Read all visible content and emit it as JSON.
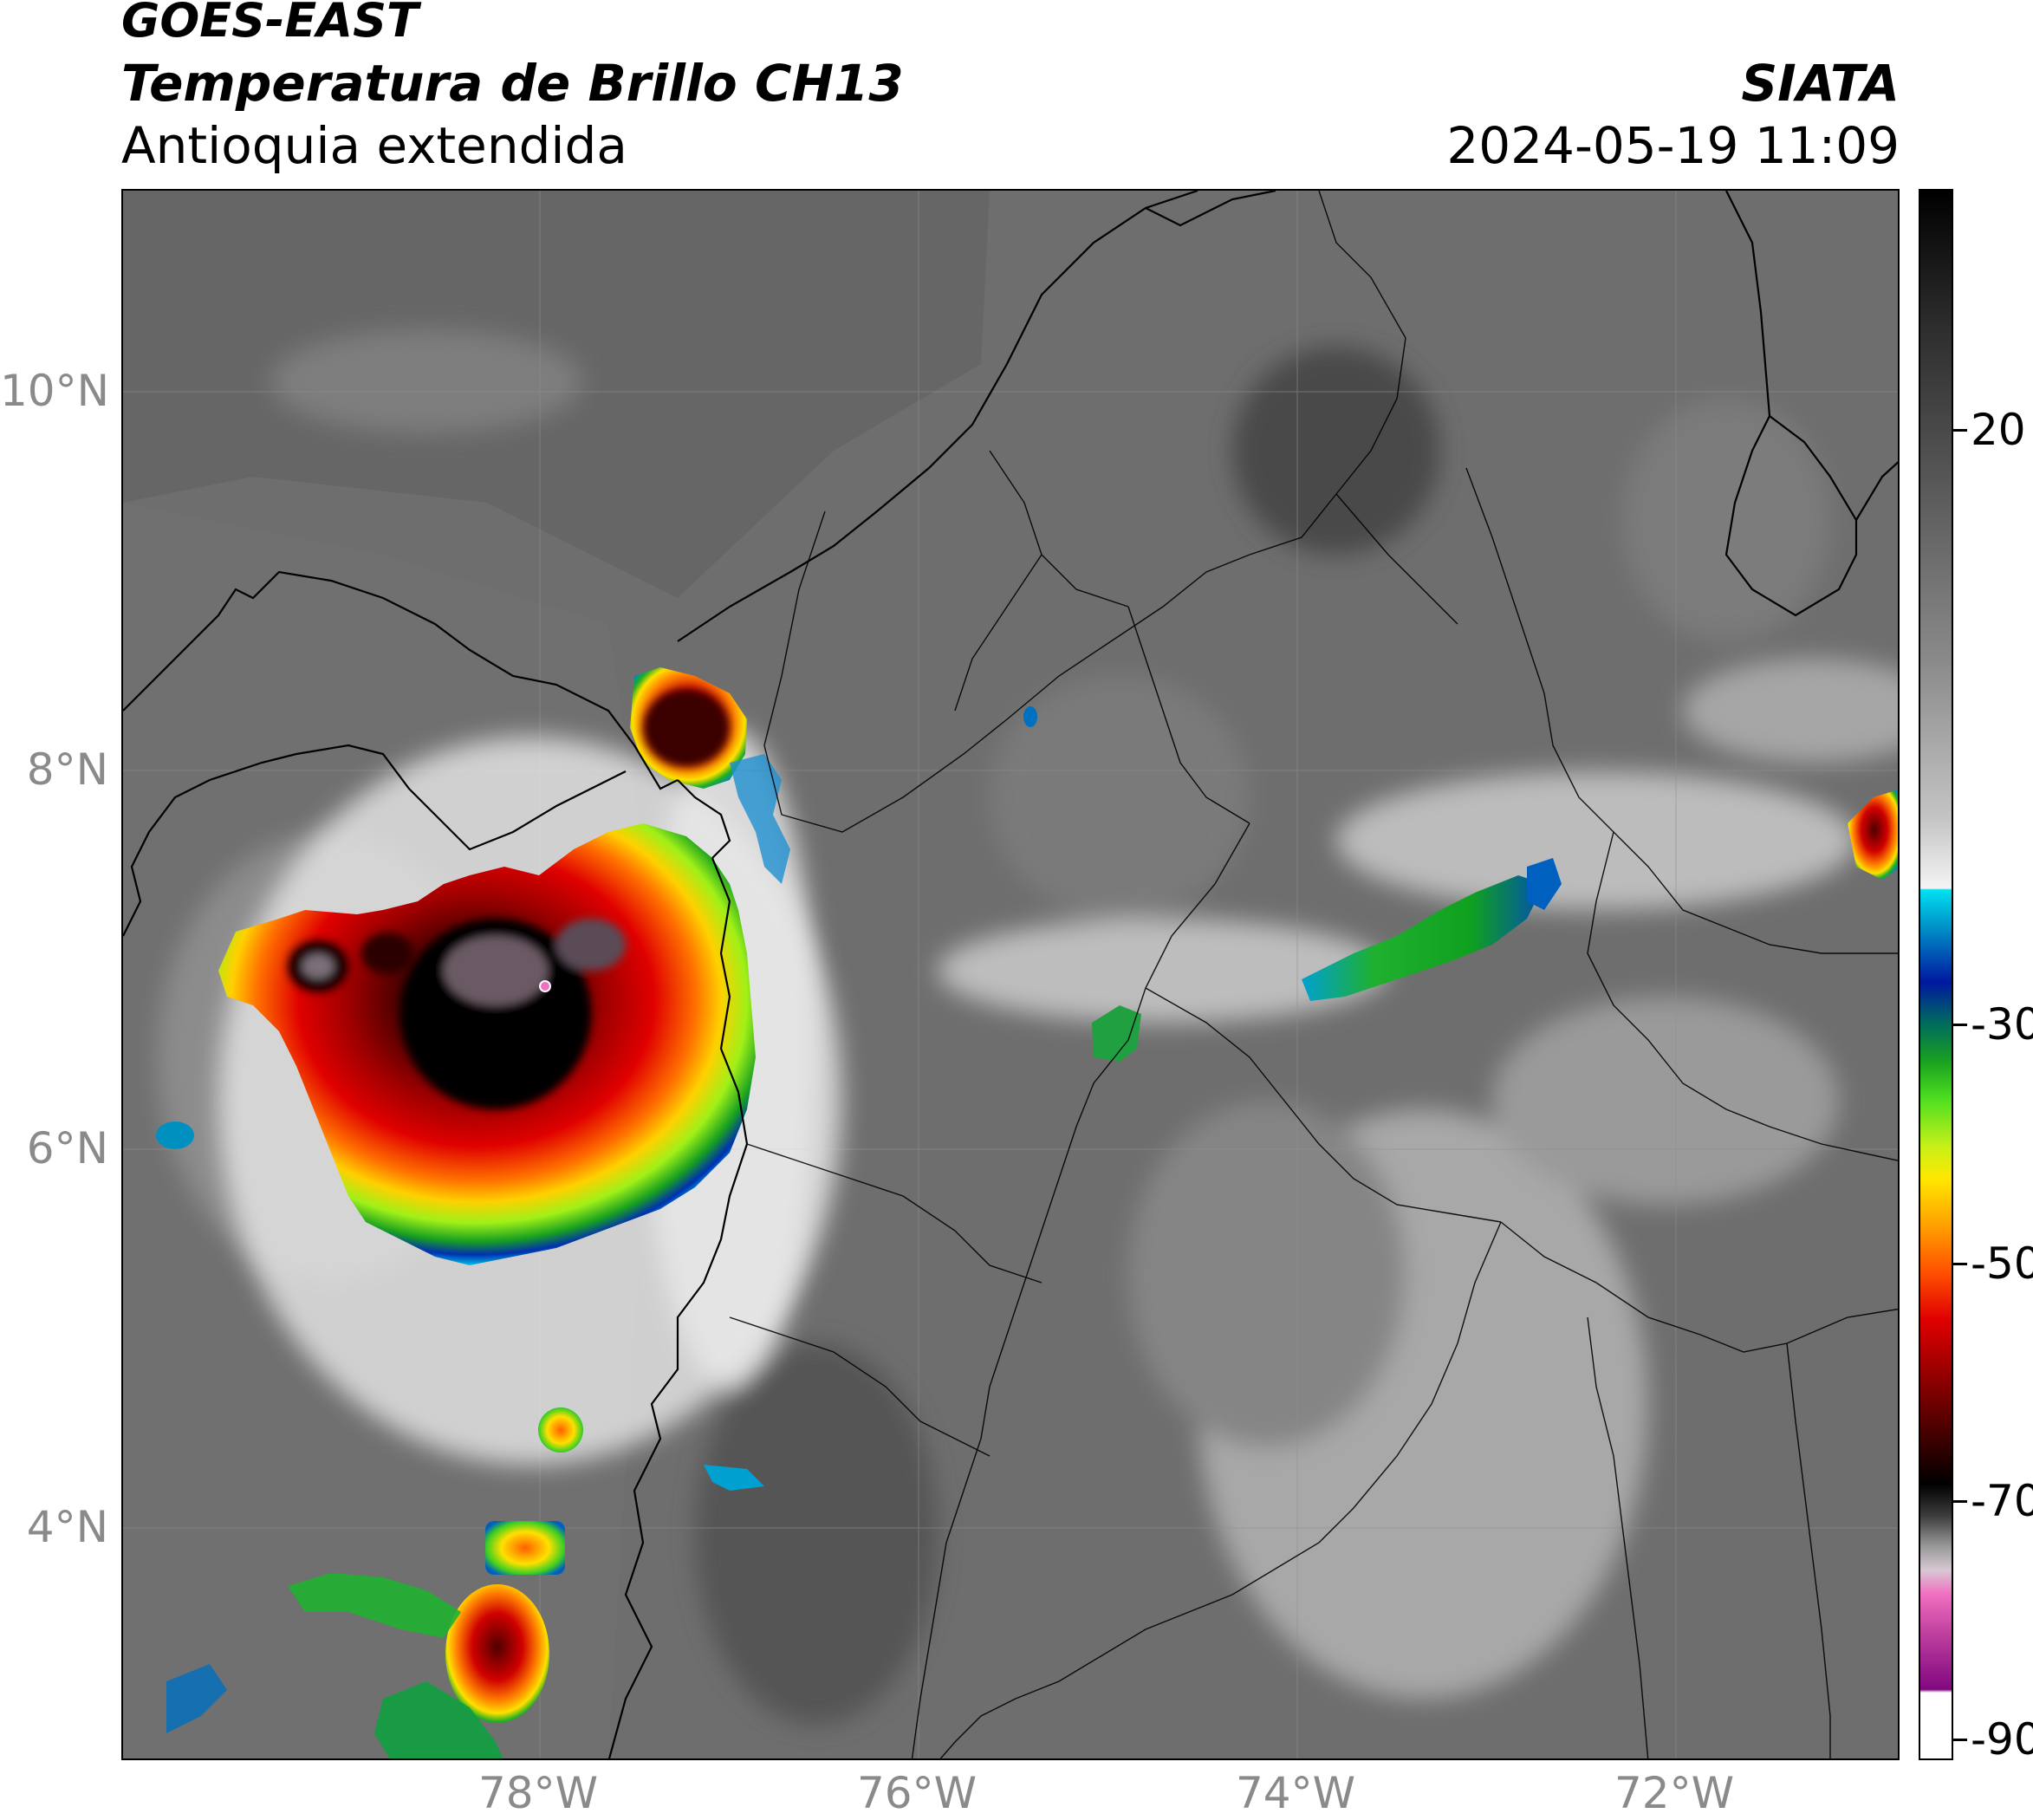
{
  "header": {
    "satellite": "GOES-EAST",
    "product": "Temperatura de Brillo CH13",
    "region": "Antioquia extendida",
    "agency": "SIATA",
    "timestamp": "2024-05-19 11:09"
  },
  "map": {
    "latitude_labels": [
      "10°N",
      "8°N",
      "6°N",
      "4°N"
    ],
    "longitude_labels": [
      "78°W",
      "76°W",
      "74°W",
      "72°W"
    ]
  },
  "colorbar": {
    "tick_labels": [
      "20",
      "-30",
      "-50",
      "-70",
      "-90"
    ],
    "colors": {
      "warm_gray": "#606060",
      "cyan": "#00e0f0",
      "blue": "#0018a0",
      "green": "#18a020",
      "yellow": "#ffe800",
      "orange": "#ffa000",
      "red": "#e00000",
      "dark_red": "#600000",
      "black": "#000000",
      "magenta": "#c040a0"
    }
  }
}
